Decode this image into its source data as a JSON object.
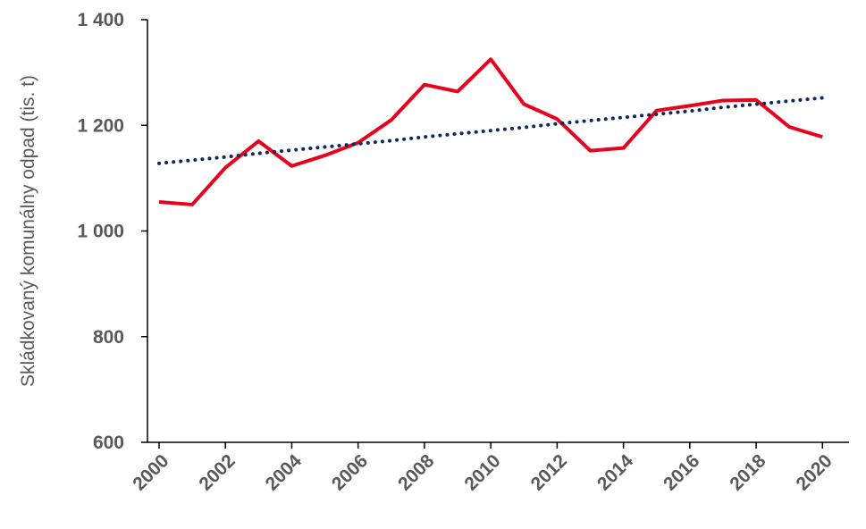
{
  "chart_data": {
    "type": "line",
    "title": "",
    "xlabel": "",
    "ylabel": "Skládkovaný komunálny odpad (tis. t)",
    "x": [
      2000,
      2001,
      2002,
      2003,
      2004,
      2005,
      2006,
      2007,
      2008,
      2009,
      2010,
      2011,
      2012,
      2013,
      2014,
      2015,
      2016,
      2017,
      2018,
      2019,
      2020
    ],
    "x_tick_labels": [
      "2000",
      "2002",
      "2004",
      "2006",
      "2008",
      "2010",
      "2012",
      "2014",
      "2016",
      "2018",
      "2020"
    ],
    "y_tick_values": [
      600,
      800,
      1000,
      1200,
      1400
    ],
    "y_tick_labels": [
      "600",
      "800",
      "1 000",
      "1 200",
      "1 400"
    ],
    "ylim": [
      600,
      1400
    ],
    "grid": false,
    "legend": "none",
    "series": [
      {
        "color": "#e8001c",
        "style": "solid",
        "values": [
          1055,
          1050,
          1120,
          1170,
          1123,
          1143,
          1167,
          1210,
          1277,
          1264,
          1325,
          1240,
          1212,
          1152,
          1157,
          1228,
          1237,
          1247,
          1248,
          1197,
          1178
        ]
      },
      {
        "color": "#0e2a5c",
        "style": "dotted",
        "kind": "linear-trend",
        "values": [
          1128,
          1134,
          1140,
          1147,
          1153,
          1159,
          1165,
          1171,
          1178,
          1184,
          1190,
          1196,
          1203,
          1209,
          1215,
          1221,
          1227,
          1234,
          1240,
          1246,
          1252
        ]
      }
    ]
  }
}
